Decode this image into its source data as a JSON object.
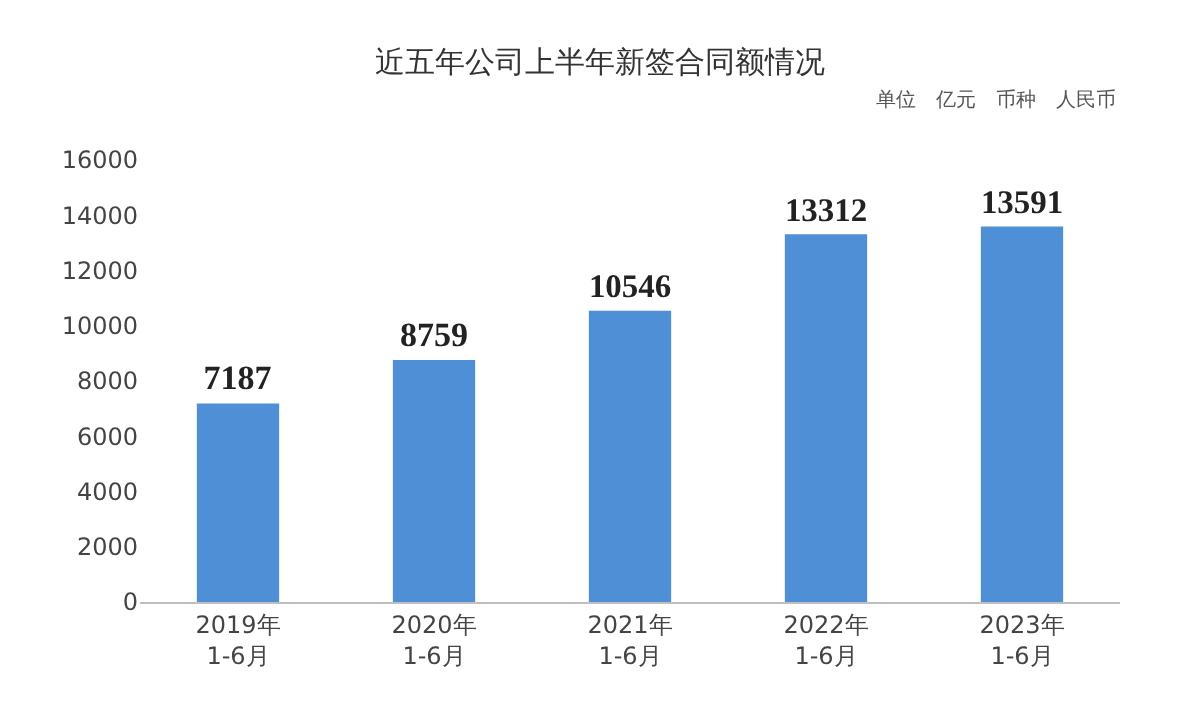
{
  "chart_data": {
    "type": "bar",
    "title": "近五年公司上半年新签合同额情况",
    "annotations": [
      "单位　亿元　币种　人民币"
    ],
    "categories": [
      "2019年\n1-6月",
      "2020年\n1-6月",
      "2021年\n1-6月",
      "2022年\n1-6月",
      "2023年\n1-6月"
    ],
    "values": [
      7187,
      8759,
      10546,
      13312,
      13591
    ],
    "color": "#4f8fd6",
    "ylim": [
      0,
      16000
    ],
    "yticks": [
      0,
      2000,
      4000,
      6000,
      8000,
      10000,
      12000,
      14000,
      16000
    ],
    "data_labels": true
  }
}
